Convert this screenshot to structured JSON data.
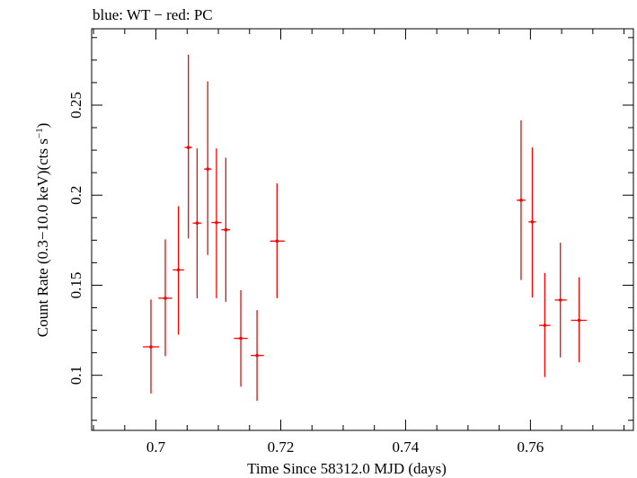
{
  "chart_data": {
    "type": "scatter",
    "title": "blue: WT − red: PC",
    "xlabel": "Time Since 58312.0 MJD (days)",
    "ylabel_main": "Count Rate (0.3−10.0 keV)(cts s",
    "ylabel_sup": "−1",
    "ylabel_end": ")",
    "xlim": [
      0.6897,
      0.7765
    ],
    "ylim": [
      0.0694,
      0.2924
    ],
    "xticks": [
      {
        "value": 0.7,
        "label": "0.7"
      },
      {
        "value": 0.72,
        "label": "0.72"
      },
      {
        "value": 0.74,
        "label": "0.74"
      },
      {
        "value": 0.76,
        "label": "0.76"
      }
    ],
    "yticks": [
      {
        "value": 0.1,
        "label": "0.1"
      },
      {
        "value": 0.15,
        "label": "0.15"
      },
      {
        "value": 0.2,
        "label": "0.2"
      },
      {
        "value": 0.25,
        "label": "0.25"
      }
    ],
    "grid": false,
    "series": [
      {
        "color": "#ff0000",
        "points": [
          {
            "x": 0.6992,
            "xlo": 0.6979,
            "xhi": 0.7005,
            "y": 0.1158,
            "ylo": 0.0899,
            "yhi": 0.1421
          },
          {
            "x": 0.7015,
            "xlo": 0.7004,
            "xhi": 0.7026,
            "y": 0.1428,
            "ylo": 0.1106,
            "yhi": 0.1755
          },
          {
            "x": 0.7036,
            "xlo": 0.7027,
            "xhi": 0.7045,
            "y": 0.1585,
            "ylo": 0.1225,
            "yhi": 0.1939
          },
          {
            "x": 0.7052,
            "xlo": 0.7046,
            "xhi": 0.7058,
            "y": 0.2265,
            "ylo": 0.176,
            "yhi": 0.278
          },
          {
            "x": 0.7066,
            "xlo": 0.7059,
            "xhi": 0.7073,
            "y": 0.1845,
            "ylo": 0.1428,
            "yhi": 0.226
          },
          {
            "x": 0.7083,
            "xlo": 0.7077,
            "xhi": 0.7089,
            "y": 0.2145,
            "ylo": 0.1668,
            "yhi": 0.2632
          },
          {
            "x": 0.7097,
            "xlo": 0.7089,
            "xhi": 0.7105,
            "y": 0.1848,
            "ylo": 0.1428,
            "yhi": 0.226
          },
          {
            "x": 0.7112,
            "xlo": 0.7105,
            "xhi": 0.7119,
            "y": 0.1808,
            "ylo": 0.1408,
            "yhi": 0.2208
          },
          {
            "x": 0.7136,
            "xlo": 0.7125,
            "xhi": 0.7147,
            "y": 0.1205,
            "ylo": 0.0937,
            "yhi": 0.1472
          },
          {
            "x": 0.7162,
            "xlo": 0.7152,
            "xhi": 0.7173,
            "y": 0.111,
            "ylo": 0.0858,
            "yhi": 0.1362
          },
          {
            "x": 0.7194,
            "xlo": 0.7183,
            "xhi": 0.7206,
            "y": 0.1745,
            "ylo": 0.1428,
            "yhi": 0.2065
          },
          {
            "x": 0.7585,
            "xlo": 0.7578,
            "xhi": 0.7592,
            "y": 0.1972,
            "ylo": 0.1529,
            "yhi": 0.2415
          },
          {
            "x": 0.7603,
            "xlo": 0.7597,
            "xhi": 0.7609,
            "y": 0.1852,
            "ylo": 0.1432,
            "yhi": 0.2265
          },
          {
            "x": 0.7623,
            "xlo": 0.7614,
            "xhi": 0.7632,
            "y": 0.1277,
            "ylo": 0.099,
            "yhi": 0.1568
          },
          {
            "x": 0.7648,
            "xlo": 0.7639,
            "xhi": 0.7658,
            "y": 0.1418,
            "ylo": 0.1099,
            "yhi": 0.1736
          },
          {
            "x": 0.7678,
            "xlo": 0.7665,
            "xhi": 0.769,
            "y": 0.1305,
            "ylo": 0.1072,
            "yhi": 0.1544
          }
        ]
      }
    ]
  }
}
